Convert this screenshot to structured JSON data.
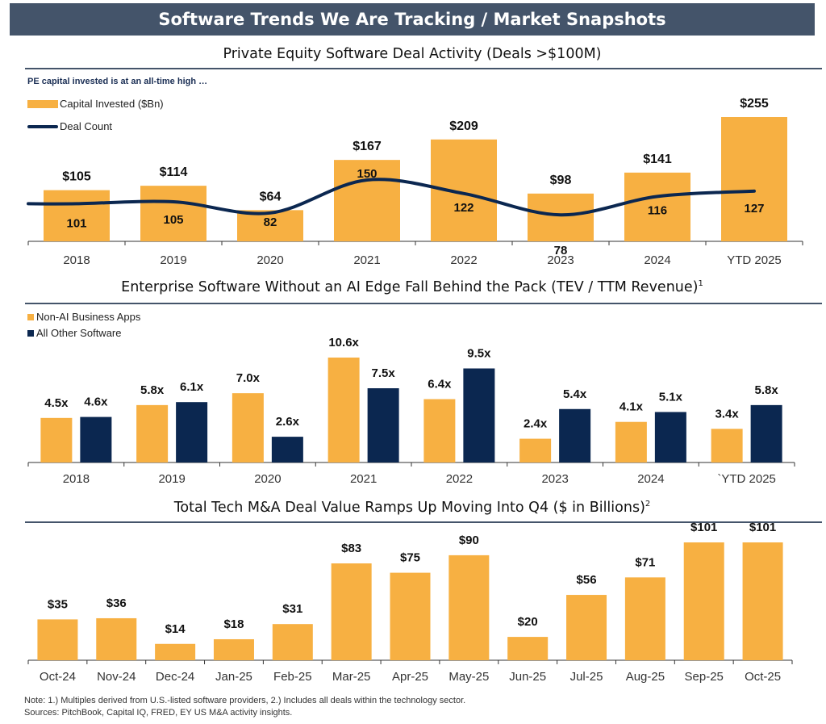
{
  "header": {
    "title": "Software Trends We Are Tracking / Market Snapshots"
  },
  "colors": {
    "orange": "#f7b042",
    "navy": "#0b2750",
    "header_bg": "#44546a"
  },
  "section1": {
    "title": "Private Equity Software Deal Activity (Deals >$100M)",
    "note": "PE capital invested is at an all-time high …",
    "legend_capital": "Capital Invested ($Bn)",
    "legend_deals": "Deal Count"
  },
  "section2": {
    "title": "Enterprise Software Without an AI Edge Fall Behind the Pack (TEV / TTM Revenue)",
    "title_sup": "1",
    "legend_a": "Non-AI Business Apps",
    "legend_b": "All Other Software"
  },
  "section3": {
    "title": "Total Tech M&A Deal Value Ramps Up Moving Into Q4 ($ in Billions)",
    "title_sup": "2"
  },
  "footer": {
    "note": "Note: 1.) Multiples derived from U.S.-listed software providers, 2.) Includes all deals within the technology sector.",
    "sources": "Sources: PitchBook, Capital IQ, FRED, EY US M&A activity insights."
  },
  "chart_data": [
    {
      "type": "bar",
      "title": "Private Equity Software Deal Activity (Deals >$100M)",
      "categories": [
        "2018",
        "2019",
        "2020",
        "2021",
        "2022",
        "2023",
        "2024",
        "YTD 2025"
      ],
      "series": [
        {
          "name": "Capital Invested ($Bn)",
          "type": "bar",
          "values": [
            105,
            114,
            64,
            167,
            209,
            98,
            141,
            255
          ],
          "labels": [
            "$105",
            "$114",
            "$64",
            "$167",
            "$209",
            "$98",
            "$141",
            "$255"
          ]
        },
        {
          "name": "Deal Count",
          "type": "line",
          "values": [
            101,
            105,
            82,
            150,
            122,
            78,
            116,
            127
          ],
          "labels": [
            "101",
            "105",
            "82",
            "150",
            "122",
            "78",
            "116",
            "127"
          ]
        }
      ],
      "ylim": [
        0,
        255
      ]
    },
    {
      "type": "bar",
      "title": "Enterprise Software Without an AI Edge Fall Behind the Pack (TEV / TTM Revenue)",
      "categories": [
        "2018",
        "2019",
        "2020",
        "2021",
        "2022",
        "2023",
        "2024",
        "`YTD 2025"
      ],
      "series": [
        {
          "name": "Non-AI Business Apps",
          "values": [
            4.5,
            5.8,
            7.0,
            10.6,
            6.4,
            2.4,
            4.1,
            3.4
          ],
          "labels": [
            "4.5x",
            "5.8x",
            "7.0x",
            "10.6x",
            "6.4x",
            "2.4x",
            "4.1x",
            "3.4x"
          ]
        },
        {
          "name": "All Other Software",
          "values": [
            4.6,
            6.1,
            2.6,
            7.5,
            9.5,
            5.4,
            5.1,
            5.8
          ],
          "labels": [
            "4.6x",
            "6.1x",
            "2.6x",
            "7.5x",
            "9.5x",
            "5.4x",
            "5.1x",
            "5.8x"
          ]
        }
      ],
      "ylim": [
        0,
        10.6
      ]
    },
    {
      "type": "bar",
      "title": "Total Tech M&A Deal Value Ramps Up Moving Into Q4 ($ in Billions)",
      "categories": [
        "Oct-24",
        "Nov-24",
        "Dec-24",
        "Jan-25",
        "Feb-25",
        "Mar-25",
        "Apr-25",
        "May-25",
        "Jun-25",
        "Jul-25",
        "Aug-25",
        "Sep-25",
        "Oct-25"
      ],
      "values": [
        35,
        36,
        14,
        18,
        31,
        83,
        75,
        90,
        20,
        56,
        71,
        101,
        101
      ],
      "labels": [
        "$35",
        "$36",
        "$14",
        "$18",
        "$31",
        "$83",
        "$75",
        "$90",
        "$20",
        "$56",
        "$71",
        "$101",
        "$101"
      ],
      "ylim": [
        0,
        101
      ]
    }
  ]
}
